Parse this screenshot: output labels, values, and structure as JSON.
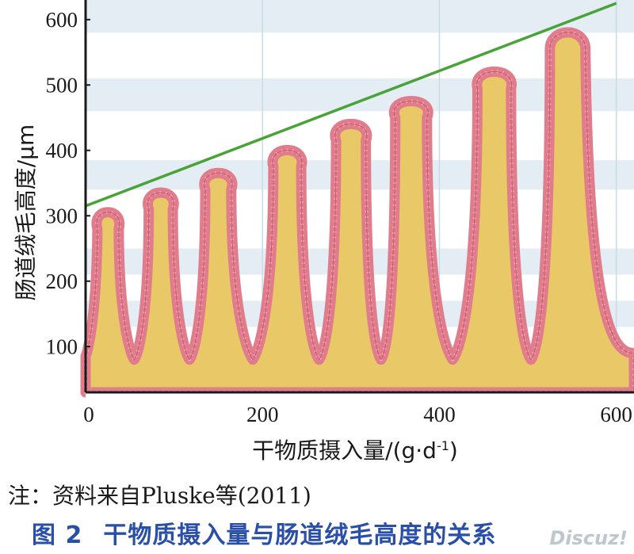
{
  "chart_data": {
    "type": "line",
    "xlabel": "干物质摄入量/(g·d",
    "xlabel_sup": "-1",
    "xlabel_end": ")",
    "ylabel": "肠道绒毛高度/μm",
    "xlim": [
      0,
      620
    ],
    "ylim": [
      30,
      630
    ],
    "xticks": [
      "0",
      "200",
      "400",
      "600"
    ],
    "xtick_values": [
      0,
      200,
      400,
      600
    ],
    "yticks": [
      "100",
      "200",
      "300",
      "400",
      "500",
      "600"
    ],
    "ytick_values": [
      100,
      200,
      300,
      400,
      500,
      600
    ],
    "grid": "horizontal bands",
    "series": [
      {
        "color": "#4aa23a",
        "x": [
          0,
          600
        ],
        "y": [
          315,
          625
        ]
      }
    ],
    "villi": [
      {
        "x": 25,
        "height": 320
      },
      {
        "x": 85,
        "height": 350
      },
      {
        "x": 150,
        "height": 380
      },
      {
        "x": 228,
        "height": 415
      },
      {
        "x": 300,
        "height": 455
      },
      {
        "x": 368,
        "height": 490
      },
      {
        "x": 462,
        "height": 535
      },
      {
        "x": 545,
        "height": 595
      }
    ],
    "villi_base": 80,
    "colors": {
      "villus_fill": "#e8c867",
      "villus_edge": "#e07c8c",
      "line": "#4aa23a",
      "band": "#e3edf3",
      "vgrid": "#c9dce6"
    }
  },
  "note": "注：资料来自Pluske等(2011)",
  "caption": {
    "number": "图 2",
    "title": "干物质摄入量与肠道绒毛高度的关系"
  },
  "watermark": "Discuz!"
}
